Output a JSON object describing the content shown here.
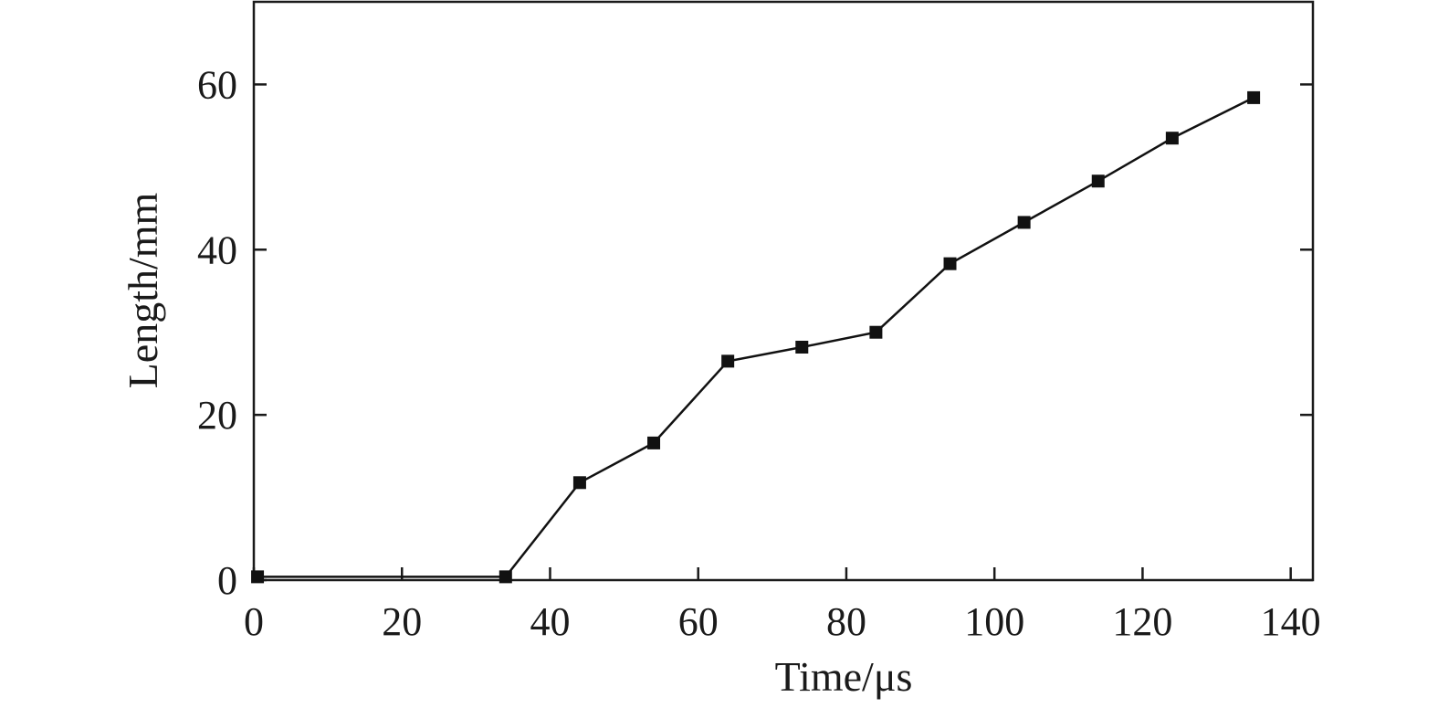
{
  "chart_data": {
    "type": "line",
    "title": "",
    "xlabel": "Time/μs",
    "ylabel": "Length/mm",
    "xlim": [
      0,
      143
    ],
    "ylim": [
      0,
      70
    ],
    "xticks": [
      0,
      20,
      40,
      60,
      80,
      100,
      120,
      140
    ],
    "yticks": [
      0,
      20,
      40,
      60
    ],
    "grid": false,
    "series": [
      {
        "color": "#111111",
        "marker": "square",
        "x": [
          0.5,
          34,
          44,
          54,
          64,
          74,
          84,
          94,
          104,
          114,
          124,
          135
        ],
        "y": [
          0.4,
          0.4,
          11.8,
          16.6,
          26.5,
          28.2,
          30.0,
          38.3,
          43.3,
          48.3,
          53.5,
          58.4
        ]
      }
    ]
  }
}
